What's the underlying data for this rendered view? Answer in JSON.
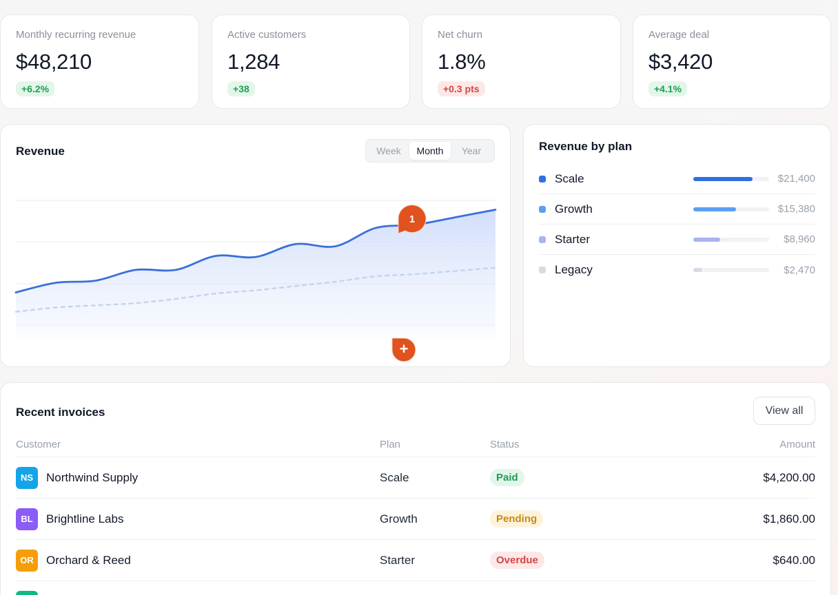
{
  "colors": {
    "accent_blue": "#3a6fd8",
    "positive": "#1f9d55",
    "negative": "#d64545",
    "marker_orange": "#e0521e"
  },
  "kpis": [
    {
      "label": "Monthly recurring revenue",
      "value": "$48,210",
      "delta": "+6.2%",
      "trend": "up"
    },
    {
      "label": "Active customers",
      "value": "1,284",
      "delta": "+38",
      "trend": "up"
    },
    {
      "label": "Net churn",
      "value": "1.8%",
      "delta": "+0.3 pts",
      "trend": "down"
    },
    {
      "label": "Average deal",
      "value": "$3,420",
      "delta": "+4.1%",
      "trend": "up"
    }
  ],
  "revenue_card": {
    "title": "Revenue",
    "ranges": [
      "Week",
      "Month",
      "Year"
    ],
    "selected_range": "Month",
    "markers": [
      {
        "label": "1",
        "icon": "numbered-pin-icon"
      },
      {
        "label": "+",
        "icon": "add-pin-icon"
      }
    ]
  },
  "chart_data": {
    "type": "area",
    "title": "Revenue",
    "xlabel": "",
    "ylabel": "",
    "grid": true,
    "legend": "none",
    "y_range": [
      0,
      100
    ],
    "x": [
      0,
      1,
      2,
      3,
      4,
      5,
      6,
      7,
      8,
      9,
      10,
      11,
      12
    ],
    "series": [
      {
        "style": "solid-area",
        "color": "#3a6fd8",
        "values": [
          31,
          40,
          42,
          52,
          52,
          65,
          64,
          76,
          74,
          91,
          94,
          101,
          108
        ]
      },
      {
        "style": "dashed",
        "color": "#c7d3ee",
        "values": [
          13,
          17,
          19,
          21,
          25,
          30,
          33,
          37,
          41,
          46,
          48,
          51,
          54
        ]
      }
    ]
  },
  "plans": {
    "title": "Revenue by plan",
    "items": [
      {
        "name": "Scale",
        "amount": "$21,400",
        "share": 0.78,
        "color": "#2f6fe0"
      },
      {
        "name": "Growth",
        "amount": "$15,380",
        "share": 0.56,
        "color": "#5aa0f0"
      },
      {
        "name": "Starter",
        "amount": "$8,960",
        "share": 0.35,
        "color": "#a7b3f2"
      },
      {
        "name": "Legacy",
        "amount": "$2,470",
        "share": 0.12,
        "color": "#d6dbe4"
      }
    ]
  },
  "invoices": {
    "title": "Recent invoices",
    "view_all": "View all",
    "columns": [
      "Customer",
      "Plan",
      "Status",
      "Amount"
    ],
    "rows": [
      {
        "initials": "NS",
        "customer": "Northwind Supply",
        "plan": "Scale",
        "status": "Paid",
        "amount": "$4,200.00",
        "avatar_color": "#14a4e8"
      },
      {
        "initials": "BL",
        "customer": "Brightline Labs",
        "plan": "Growth",
        "status": "Pending",
        "amount": "$1,860.00",
        "avatar_color": "#8b5cf6"
      },
      {
        "initials": "OR",
        "customer": "Orchard & Reed",
        "plan": "Starter",
        "status": "Overdue",
        "amount": "$640.00",
        "avatar_color": "#f59e0b"
      },
      {
        "initials": "",
        "customer": "",
        "plan": "",
        "status": "",
        "amount": "",
        "avatar_color": "#10b981"
      }
    ]
  }
}
